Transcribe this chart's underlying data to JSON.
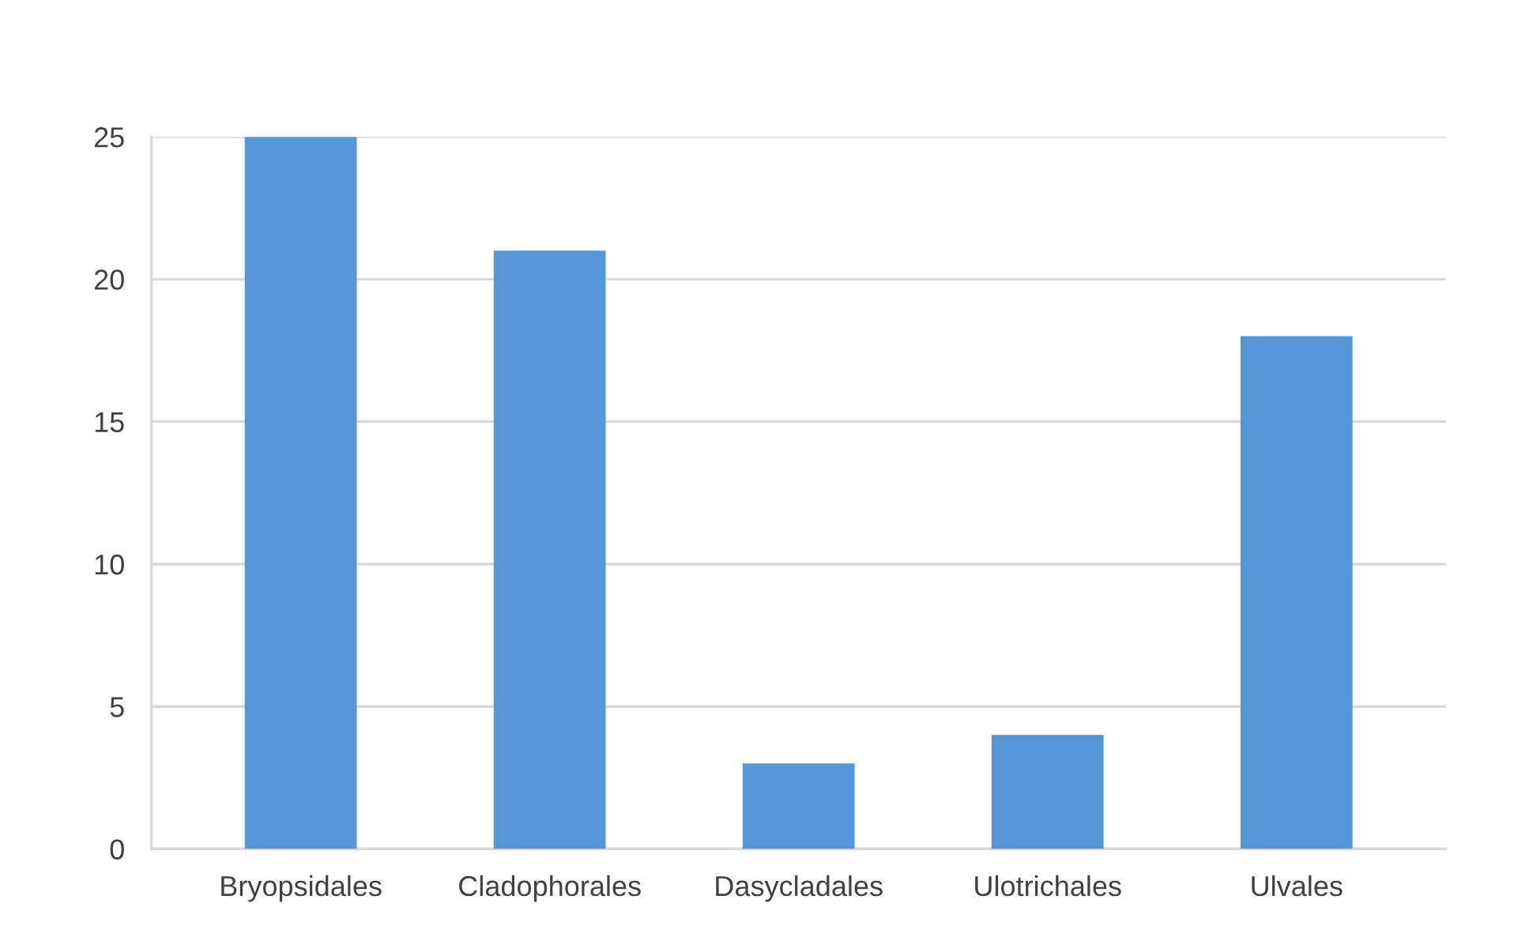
{
  "chart_data": {
    "type": "bar",
    "categories": [
      "Bryopsidales",
      "Cladophorales",
      "Dasycladales",
      "Ulotrichales",
      "Ulvales"
    ],
    "values": [
      25,
      21,
      3,
      4,
      18
    ],
    "color": "#5596d6",
    "ylim": [
      0,
      25
    ],
    "yticks": [
      0,
      5,
      10,
      15,
      20,
      25
    ],
    "grid": "y"
  }
}
